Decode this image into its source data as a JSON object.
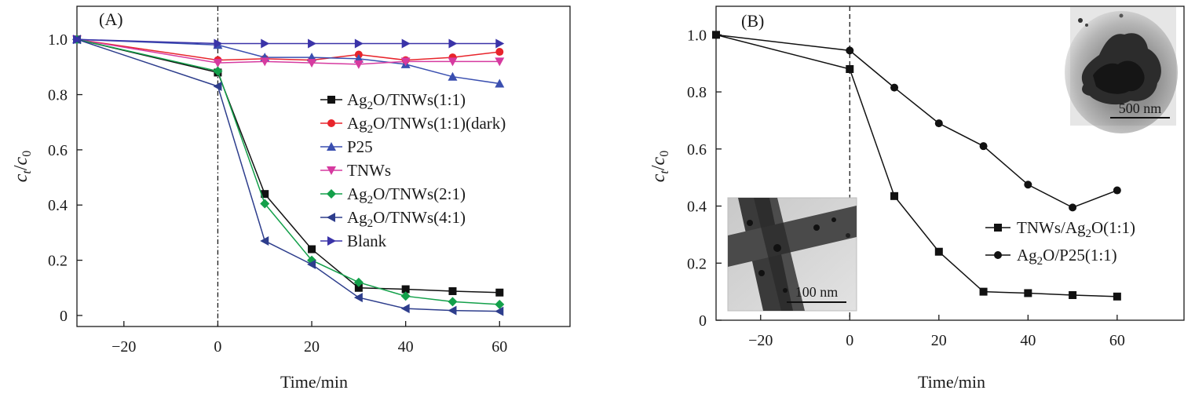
{
  "chart_data": [
    {
      "type": "line",
      "panel_label": "(A)",
      "xlabel": "Time/min",
      "ylabel_main": "c",
      "ylabel_sub_top": "t",
      "ylabel_slash": "/",
      "ylabel_main2": "c",
      "ylabel_sub_bottom": "0",
      "xlim": [
        -30,
        75
      ],
      "ylim": [
        -0.04,
        1.12
      ],
      "xticks": [
        -20,
        0,
        20,
        40,
        60
      ],
      "xtick_labels": [
        "−20",
        "0",
        "20",
        "40",
        "60"
      ],
      "yticks": [
        0,
        0.2,
        0.4,
        0.6,
        0.8,
        1.0
      ],
      "ytick_labels": [
        "0",
        "0.2",
        "0.4",
        "0.6",
        "0.8",
        "1.0"
      ],
      "vline_x": 0,
      "legend_position": "center-right",
      "series": [
        {
          "name_parts": [
            "Ag",
            "2",
            "O/TNWs(1:1)"
          ],
          "color": "#111111",
          "marker": "square",
          "x": [
            -30,
            0,
            10,
            20,
            30,
            40,
            50,
            60
          ],
          "y": [
            1.0,
            0.88,
            0.44,
            0.24,
            0.1,
            0.095,
            0.088,
            0.083
          ]
        },
        {
          "name_parts": [
            "Ag",
            "2",
            "O/TNWs(1:1)(dark)"
          ],
          "color": "#e8242b",
          "marker": "circle",
          "x": [
            -30,
            0,
            10,
            20,
            30,
            40,
            50,
            60
          ],
          "y": [
            1.0,
            0.925,
            0.93,
            0.925,
            0.945,
            0.925,
            0.935,
            0.955
          ]
        },
        {
          "name_parts": [
            "P25",
            "",
            ""
          ],
          "color": "#3a4fb0",
          "marker": "triangle-up",
          "x": [
            -30,
            0,
            10,
            20,
            30,
            40,
            50,
            60
          ],
          "y": [
            1.0,
            0.98,
            0.935,
            0.935,
            0.93,
            0.91,
            0.865,
            0.84
          ]
        },
        {
          "name_parts": [
            "TNWs",
            "",
            ""
          ],
          "color": "#d63aa0",
          "marker": "triangle-down",
          "x": [
            -30,
            0,
            10,
            20,
            30,
            40,
            50,
            60
          ],
          "y": [
            1.0,
            0.915,
            0.92,
            0.915,
            0.91,
            0.92,
            0.92,
            0.92
          ]
        },
        {
          "name_parts": [
            "Ag",
            "2",
            "O/TNWs(2:1)"
          ],
          "color": "#13a04a",
          "marker": "diamond",
          "x": [
            -30,
            0,
            10,
            20,
            30,
            40,
            50,
            60
          ],
          "y": [
            1.0,
            0.885,
            0.405,
            0.2,
            0.12,
            0.07,
            0.05,
            0.04
          ]
        },
        {
          "name_parts": [
            "Ag",
            "2",
            "O/TNWs(4:1)"
          ],
          "color": "#2d3d8c",
          "marker": "triangle-left",
          "x": [
            -30,
            0,
            10,
            20,
            30,
            40,
            50,
            60
          ],
          "y": [
            1.0,
            0.83,
            0.27,
            0.185,
            0.065,
            0.025,
            0.018,
            0.015
          ]
        },
        {
          "name_parts": [
            "Blank",
            "",
            ""
          ],
          "color": "#3a33a8",
          "marker": "triangle-right",
          "x": [
            -30,
            0,
            10,
            20,
            30,
            40,
            50,
            60
          ],
          "y": [
            1.0,
            0.985,
            0.985,
            0.985,
            0.985,
            0.985,
            0.985,
            0.985
          ]
        }
      ]
    },
    {
      "type": "line",
      "panel_label": "(B)",
      "xlabel": "Time/min",
      "ylabel_main": "c",
      "ylabel_sub_top": "t",
      "ylabel_slash": "/",
      "ylabel_main2": "c",
      "ylabel_sub_bottom": "0",
      "xlim": [
        -30,
        75
      ],
      "ylim": [
        0,
        1.1
      ],
      "xticks": [
        -20,
        0,
        20,
        40,
        60
      ],
      "xtick_labels": [
        "−20",
        "0",
        "20",
        "40",
        "60"
      ],
      "yticks": [
        0,
        0.2,
        0.4,
        0.6,
        0.8,
        1.0
      ],
      "ytick_labels": [
        "0",
        "0.2",
        "0.4",
        "0.6",
        "0.8",
        "1.0"
      ],
      "vline_x": 0,
      "legend_position": "center-right",
      "series": [
        {
          "name_parts": [
            "TNWs/Ag",
            "2",
            "O(1:1)"
          ],
          "color": "#111111",
          "marker": "square",
          "x": [
            -30,
            0,
            10,
            20,
            30,
            40,
            50,
            60
          ],
          "y": [
            1.0,
            0.88,
            0.435,
            0.24,
            0.1,
            0.095,
            0.088,
            0.083
          ]
        },
        {
          "name_parts": [
            "Ag",
            "2",
            "O/P25(1:1)"
          ],
          "color": "#111111",
          "marker": "circle",
          "x": [
            -30,
            0,
            10,
            20,
            30,
            40,
            50,
            60
          ],
          "y": [
            1.0,
            0.945,
            0.815,
            0.69,
            0.61,
            0.475,
            0.395,
            0.455
          ]
        }
      ],
      "insets": [
        {
          "name": "tem-inset-top-right",
          "scale_bar_label": "500 nm"
        },
        {
          "name": "tem-inset-bottom-left",
          "scale_bar_label": "100 nm"
        }
      ]
    }
  ]
}
